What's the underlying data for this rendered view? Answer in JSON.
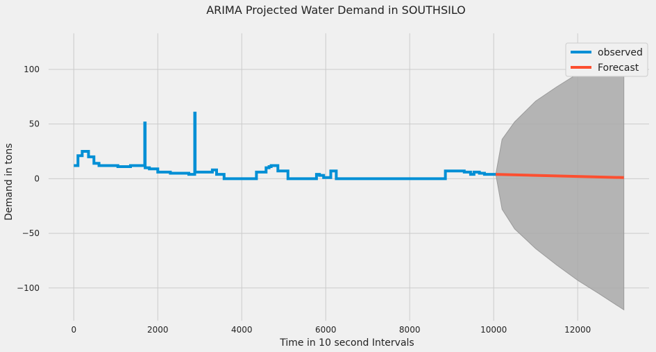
{
  "chart_data": {
    "type": "line",
    "title": "ARIMA Projected Water Demand in SOUTHSILO",
    "xlabel": "Time in 10 second Intervals",
    "ylabel": "Demand in tons",
    "xlim": [
      -600,
      13700
    ],
    "ylim": [
      -130,
      133
    ],
    "xticks": [
      0,
      2000,
      4000,
      6000,
      8000,
      10000,
      12000
    ],
    "xtick_labels": [
      "0",
      "2000",
      "4000",
      "6000",
      "8000",
      "10000",
      "12000"
    ],
    "yticks": [
      -100,
      -50,
      0,
      50,
      100
    ],
    "ytick_labels": [
      "−100",
      "−50",
      "0",
      "50",
      "100"
    ],
    "grid": true,
    "legend_position": "top-right",
    "colors": {
      "observed": "#008fd5",
      "forecast": "#fc4f30",
      "band": "#a9a9a9"
    },
    "series": [
      {
        "name": "observed",
        "step": true,
        "points": [
          [
            0,
            12
          ],
          [
            100,
            12
          ],
          [
            100,
            21
          ],
          [
            200,
            21
          ],
          [
            200,
            25
          ],
          [
            350,
            25
          ],
          [
            350,
            20
          ],
          [
            480,
            20
          ],
          [
            480,
            14
          ],
          [
            600,
            14
          ],
          [
            600,
            12
          ],
          [
            1050,
            12
          ],
          [
            1050,
            11
          ],
          [
            1350,
            11
          ],
          [
            1350,
            12
          ],
          [
            1690,
            12
          ],
          [
            1690,
            51
          ],
          [
            1700,
            51
          ],
          [
            1700,
            10
          ],
          [
            1800,
            10
          ],
          [
            1800,
            9
          ],
          [
            2000,
            9
          ],
          [
            2000,
            6
          ],
          [
            2300,
            6
          ],
          [
            2300,
            5
          ],
          [
            2740,
            5
          ],
          [
            2740,
            4
          ],
          [
            2880,
            4
          ],
          [
            2880,
            60
          ],
          [
            2890,
            60
          ],
          [
            2890,
            6
          ],
          [
            3300,
            6
          ],
          [
            3300,
            8
          ],
          [
            3400,
            8
          ],
          [
            3400,
            4
          ],
          [
            3580,
            4
          ],
          [
            3580,
            0
          ],
          [
            4350,
            0
          ],
          [
            4350,
            6
          ],
          [
            4580,
            6
          ],
          [
            4580,
            10
          ],
          [
            4650,
            10
          ],
          [
            4650,
            11
          ],
          [
            4700,
            11
          ],
          [
            4700,
            12
          ],
          [
            4860,
            12
          ],
          [
            4860,
            7
          ],
          [
            5100,
            7
          ],
          [
            5100,
            0
          ],
          [
            5780,
            0
          ],
          [
            5780,
            4
          ],
          [
            5850,
            4
          ],
          [
            5850,
            3
          ],
          [
            5950,
            3
          ],
          [
            5950,
            1
          ],
          [
            6120,
            1
          ],
          [
            6120,
            7
          ],
          [
            6250,
            7
          ],
          [
            6250,
            0
          ],
          [
            8850,
            0
          ],
          [
            8850,
            7
          ],
          [
            9300,
            7
          ],
          [
            9300,
            6
          ],
          [
            9450,
            6
          ],
          [
            9450,
            4
          ],
          [
            9530,
            4
          ],
          [
            9530,
            6
          ],
          [
            9660,
            6
          ],
          [
            9660,
            5
          ],
          [
            9780,
            5
          ],
          [
            9780,
            4
          ],
          [
            10050,
            4
          ]
        ]
      },
      {
        "name": "Forecast",
        "points": [
          [
            10050,
            4
          ],
          [
            13100,
            1
          ]
        ]
      }
    ],
    "confidence_band": {
      "x": [
        10050,
        10200,
        10500,
        11000,
        11500,
        12000,
        12500,
        13100
      ],
      "upper": [
        4,
        36,
        52,
        71,
        84,
        96,
        103,
        111
      ],
      "lower": [
        4,
        -28,
        -46,
        -64,
        -79,
        -93,
        -105,
        -120
      ]
    }
  }
}
